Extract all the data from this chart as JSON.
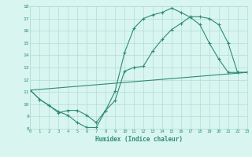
{
  "line1_x": [
    0,
    1,
    2,
    3,
    4,
    5,
    6,
    7,
    8,
    9,
    10,
    11,
    12,
    13,
    14,
    15,
    16,
    17,
    18,
    19,
    20,
    21,
    22,
    23
  ],
  "line1_y": [
    11.15,
    10.4,
    9.9,
    9.4,
    9.1,
    8.5,
    8.1,
    8.1,
    9.5,
    11.05,
    14.2,
    16.2,
    17.0,
    17.3,
    17.5,
    17.85,
    17.5,
    17.1,
    16.5,
    15.0,
    13.7,
    12.6,
    12.6,
    12.6
  ],
  "line2_x": [
    0,
    1,
    2,
    3,
    4,
    5,
    6,
    7,
    8,
    9,
    10,
    11,
    12,
    13,
    14,
    15,
    16,
    17,
    18,
    19,
    20,
    21,
    22,
    23
  ],
  "line2_y": [
    11.15,
    10.4,
    9.9,
    9.3,
    9.5,
    9.5,
    9.1,
    8.5,
    9.5,
    10.3,
    12.7,
    13.0,
    13.1,
    14.35,
    15.3,
    16.1,
    16.6,
    17.15,
    17.15,
    17.0,
    16.5,
    15.0,
    12.6,
    12.6
  ],
  "line3_x": [
    0,
    23
  ],
  "line3_y": [
    11.15,
    12.6
  ],
  "color": "#2e8b74",
  "bg_color": "#d8f5f0",
  "grid_color": "#b0ddd5",
  "xlabel": "Humidex (Indice chaleur)",
  "xlim": [
    0,
    23
  ],
  "ylim": [
    8,
    18
  ],
  "yticks": [
    8,
    9,
    10,
    11,
    12,
    13,
    14,
    15,
    16,
    17,
    18
  ],
  "xticks": [
    0,
    1,
    2,
    3,
    4,
    5,
    6,
    7,
    8,
    9,
    10,
    11,
    12,
    13,
    14,
    15,
    16,
    17,
    18,
    19,
    20,
    21,
    22,
    23
  ],
  "xtick_labels": [
    "0",
    "1",
    "2",
    "3",
    "4",
    "5",
    "6",
    "7",
    "8",
    "9",
    "10",
    "11",
    "12",
    "13",
    "14",
    "15",
    "16",
    "17",
    "18",
    "19",
    "20",
    "21",
    "22",
    "23"
  ],
  "marker": "+"
}
